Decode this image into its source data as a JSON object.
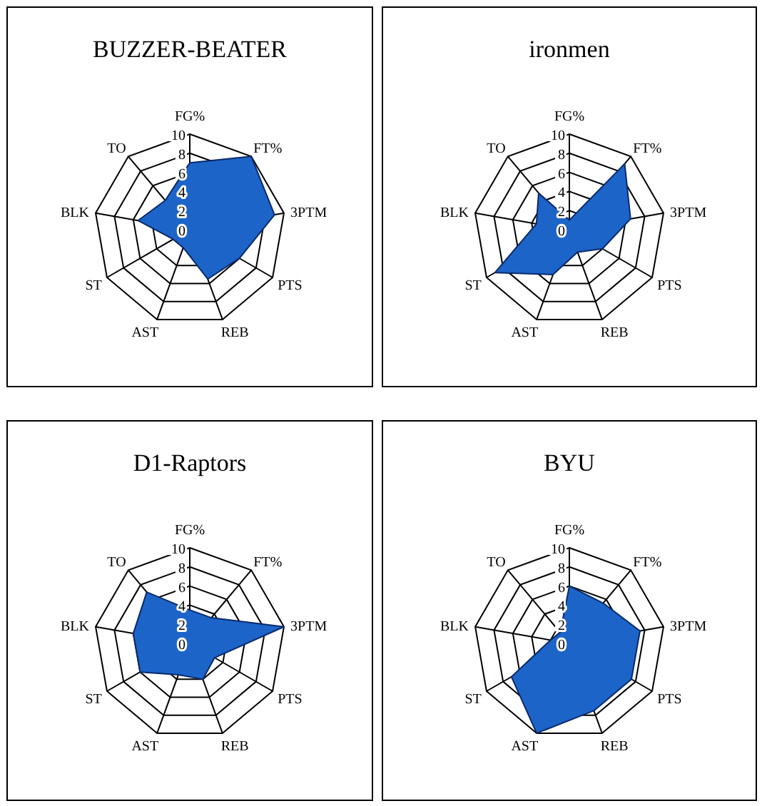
{
  "chart_data": [
    {
      "type": "radar",
      "title": "BUZZER-BEATER",
      "categories": [
        "FG%",
        "FT%",
        "3PTM",
        "PTS",
        "REB",
        "AST",
        "ST",
        "BLK",
        "TO"
      ],
      "ylim": [
        0,
        10
      ],
      "yticks": [
        0,
        2,
        4,
        6,
        8,
        10
      ],
      "grid": true,
      "series": [
        {
          "color": "#1c64c8",
          "values": [
            7,
            10,
            9,
            6,
            5.5,
            2,
            2,
            5.5,
            4
          ]
        }
      ]
    },
    {
      "type": "radar",
      "title": "ironmen",
      "categories": [
        "FG%",
        "FT%",
        "3PTM",
        "PTS",
        "REB",
        "AST",
        "ST",
        "BLK",
        "TO"
      ],
      "ylim": [
        0,
        10
      ],
      "yticks": [
        0,
        2,
        4,
        6,
        8,
        10
      ],
      "grid": true,
      "series": [
        {
          "color": "#1c64c8",
          "values": [
            1,
            9,
            6.5,
            4,
            2.5,
            5,
            9,
            3.5,
            5
          ]
        }
      ]
    },
    {
      "type": "radar",
      "title": "D1-Raptors",
      "categories": [
        "FG%",
        "FT%",
        "3PTM",
        "PTS",
        "REB",
        "AST",
        "ST",
        "BLK",
        "TO"
      ],
      "ylim": [
        0,
        10
      ],
      "yticks": [
        0,
        2,
        4,
        6,
        8,
        10
      ],
      "grid": true,
      "series": [
        {
          "color": "#1c64c8",
          "values": [
            3.5,
            3.5,
            10,
            3,
            4,
            3.5,
            6,
            6,
            7
          ]
        }
      ]
    },
    {
      "type": "radar",
      "title": "BYU",
      "categories": [
        "FG%",
        "FT%",
        "3PTM",
        "PTS",
        "REB",
        "AST",
        "ST",
        "BLK",
        "TO"
      ],
      "ylim": [
        0,
        10
      ],
      "yticks": [
        0,
        2,
        4,
        6,
        8,
        10
      ],
      "grid": true,
      "series": [
        {
          "color": "#1c64c8",
          "values": [
            6,
            5.5,
            7.5,
            7.5,
            7.5,
            10,
            7,
            2,
            1.5
          ]
        }
      ]
    }
  ]
}
